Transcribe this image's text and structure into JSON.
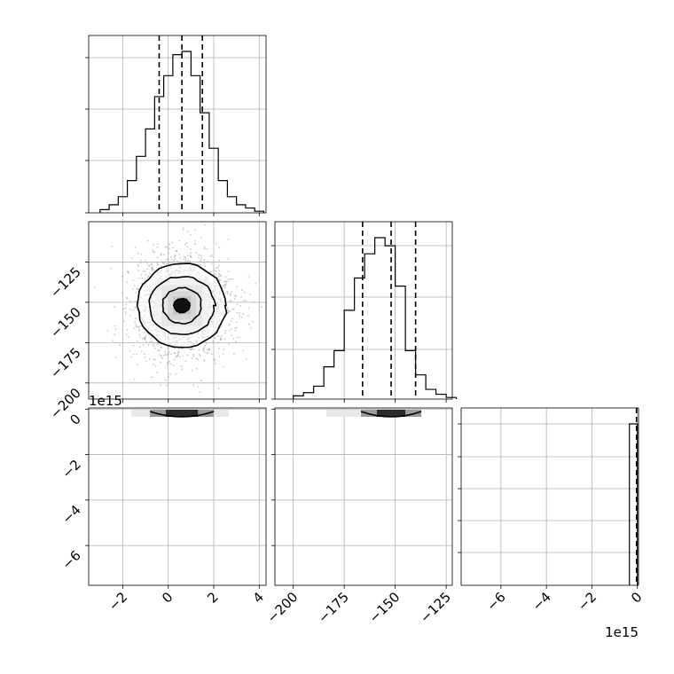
{
  "chart_data": {
    "type": "corner",
    "grid": true,
    "variables": 3,
    "quantile_lines": "dashed",
    "panels": [
      {
        "id": "hist-x",
        "type": "histogram",
        "xlim": [
          -3.5,
          4.3
        ],
        "bins_x": [
          -3.0,
          -2.6,
          -2.2,
          -1.8,
          -1.4,
          -1.0,
          -0.6,
          -0.2,
          0.2,
          0.6,
          1.0,
          1.4,
          1.8,
          2.2,
          2.6,
          3.0,
          3.4,
          3.8,
          4.2
        ],
        "counts": [
          0.02,
          0.05,
          0.1,
          0.2,
          0.35,
          0.52,
          0.72,
          0.85,
          0.98,
          1.0,
          0.85,
          0.62,
          0.4,
          0.2,
          0.1,
          0.05,
          0.03,
          0.01
        ],
        "quantiles": [
          -0.4,
          0.6,
          1.5
        ]
      },
      {
        "id": "hist-y",
        "type": "histogram",
        "xlim": [
          -209,
          -122
        ],
        "bins_x": [
          -200,
          -195,
          -190,
          -185,
          -180,
          -175,
          -170,
          -165,
          -160,
          -155,
          -150,
          -145,
          -140,
          -135,
          -130,
          -125,
          -120
        ],
        "counts": [
          0.02,
          0.04,
          0.08,
          0.2,
          0.3,
          0.55,
          0.75,
          0.9,
          1.0,
          0.95,
          0.7,
          0.3,
          0.15,
          0.06,
          0.03,
          0.01
        ],
        "quantiles": [
          -166,
          -152,
          -140
        ]
      },
      {
        "id": "hist-z",
        "type": "histogram",
        "xlim": [
          -7.75,
          0.05
        ],
        "offset_label": "1e15",
        "bins_x": [
          -0.35,
          0.0
        ],
        "counts": [
          1.0
        ],
        "quantiles": [
          0.0
        ]
      },
      {
        "id": "scatter-xy",
        "type": "2d-density",
        "xlim": [
          -3.5,
          4.3
        ],
        "ylim": [
          -210,
          -100
        ],
        "center": [
          0.6,
          -152
        ],
        "sd": [
          1.1,
          16
        ],
        "contour_levels_sd": [
          0.5,
          1.0,
          1.5,
          2.0
        ]
      },
      {
        "id": "scatter-xz",
        "type": "2d-density",
        "xlim": [
          -3.5,
          4.3
        ],
        "ylim": [
          -7.75,
          0.05
        ],
        "offset_label": "1e15",
        "center": [
          0.6,
          -0.03
        ],
        "sd": [
          1.1,
          0.02
        ]
      },
      {
        "id": "scatter-yz",
        "type": "2d-density",
        "xlim": [
          -209,
          -122
        ],
        "ylim": [
          -7.75,
          0.05
        ],
        "center": [
          -152,
          -0.03
        ],
        "sd": [
          16,
          0.02
        ]
      }
    ],
    "axes": {
      "x0_ticks": [
        -2,
        0,
        2,
        4
      ],
      "x0_tick_labels": [
        "−2",
        "0",
        "2",
        "4"
      ],
      "x1_ticks": [
        -200,
        -175,
        -150,
        -125
      ],
      "x1_tick_labels": [
        "−200",
        "−175",
        "−150",
        "−125"
      ],
      "x2_ticks": [
        -6,
        -4,
        -2,
        0
      ],
      "x2_tick_labels": [
        "−6",
        "−4",
        "−2",
        "0"
      ],
      "y1_ticks": [
        -125,
        -150,
        -175,
        -200
      ],
      "y1_tick_labels": [
        "−125",
        "−150",
        "−175",
        "−200"
      ],
      "y2_ticks": [
        0,
        -2,
        -4,
        -6
      ],
      "y2_tick_labels": [
        "0",
        "−2",
        "−4",
        "−6"
      ],
      "y2_offset_label": "1e15",
      "x2_offset_label": "1e15"
    }
  }
}
